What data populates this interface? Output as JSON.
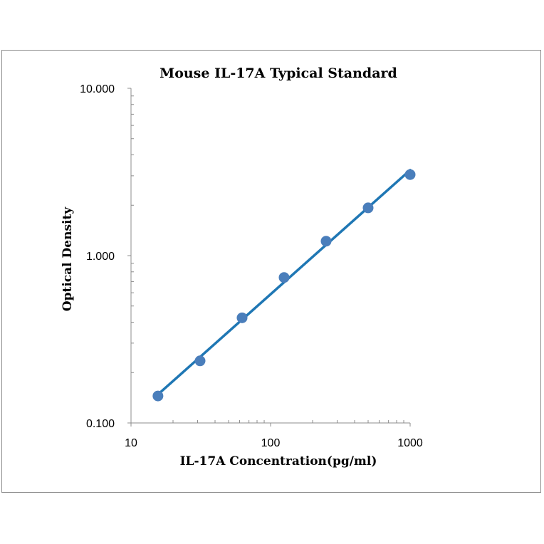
{
  "chart_data": {
    "type": "scatter",
    "title": "Mouse IL-17A Typical Standard",
    "xlabel": "IL-17A Concentration(pg/ml)",
    "ylabel": "Optical Density",
    "x_scale": "log",
    "y_scale": "log",
    "xlim": [
      10,
      1000
    ],
    "ylim": [
      0.1,
      10
    ],
    "x_ticks": [
      {
        "value": 10,
        "label": "10"
      },
      {
        "value": 100,
        "label": "100"
      },
      {
        "value": 1000,
        "label": "1000"
      }
    ],
    "y_ticks": [
      {
        "value": 0.1,
        "label": "0.100"
      },
      {
        "value": 1,
        "label": "1.000"
      },
      {
        "value": 10,
        "label": "10.000"
      }
    ],
    "grid": false,
    "legend": "none",
    "series": [
      {
        "x": [
          15.6,
          31.25,
          62.5,
          125,
          250,
          500,
          1000
        ],
        "y": [
          0.145,
          0.235,
          0.425,
          0.74,
          1.22,
          1.93,
          3.05
        ],
        "marker_color": "#4a7ebb",
        "trendline": true,
        "trendline_color": "#1f77b4"
      }
    ]
  }
}
